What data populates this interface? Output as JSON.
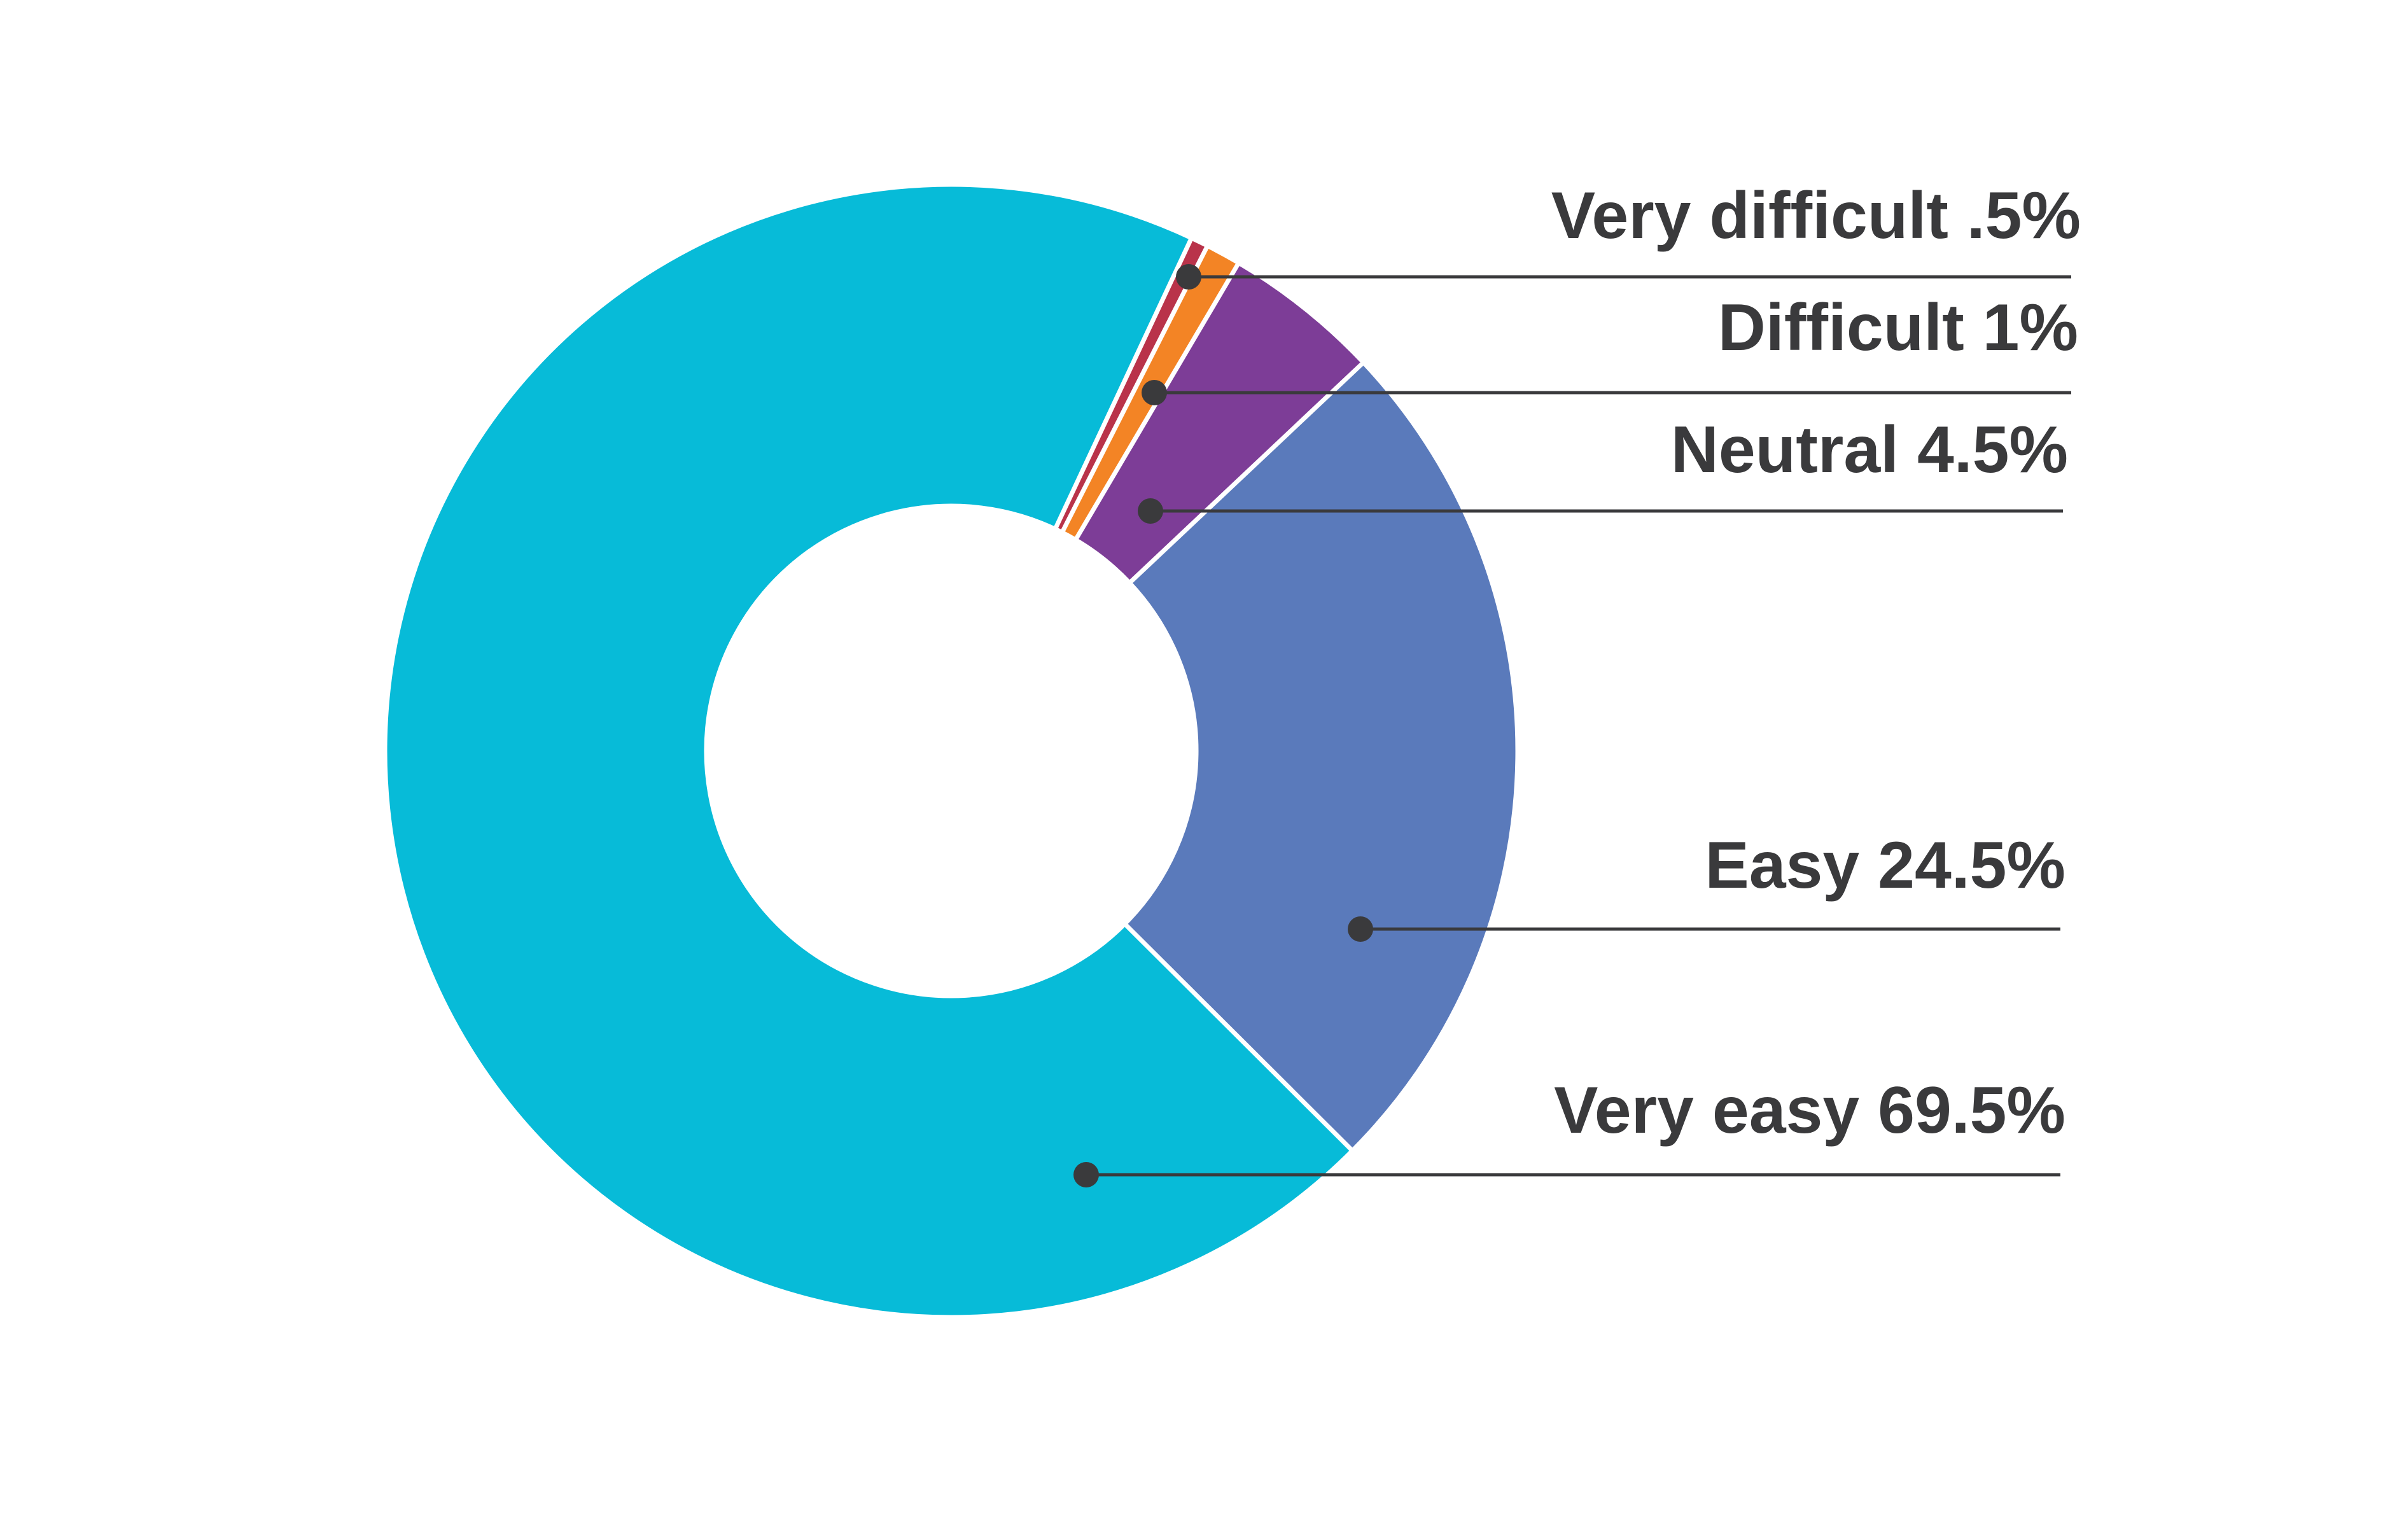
{
  "chart_data": {
    "type": "pie",
    "variant": "donut",
    "title": "",
    "series": [
      {
        "label": "Very easy",
        "value": 69.5,
        "display": "Very easy 69.5%",
        "color": "#07bbd8"
      },
      {
        "label": "Easy",
        "value": 24.5,
        "display": "Easy 24.5%",
        "color": "#5a7abb"
      },
      {
        "label": "Neutral",
        "value": 4.5,
        "display": "Neutral 4.5%",
        "color": "#7d3d97"
      },
      {
        "label": "Difficult",
        "value": 1,
        "display": "Difficult 1%",
        "color": "#f38425"
      },
      {
        "label": "Very difficult",
        "value": 0.5,
        "display": "Very difficult .5%",
        "color": "#b9334a"
      }
    ],
    "legend": "callout labels on right with leader lines",
    "label_color": "#3a3a3c"
  }
}
